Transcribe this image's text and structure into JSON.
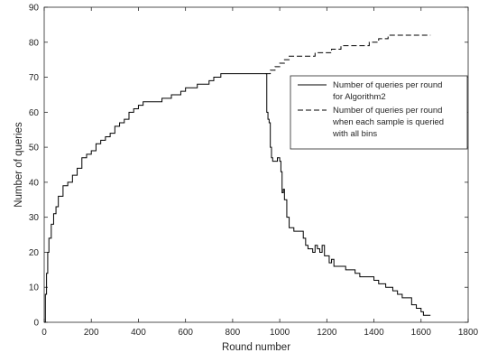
{
  "chart_data": {
    "type": "line",
    "xlabel": "Round number",
    "ylabel": "Number of queries",
    "xlim": [
      0,
      1800
    ],
    "ylim": [
      0,
      90
    ],
    "xticks": [
      0,
      200,
      400,
      600,
      800,
      1000,
      1200,
      1400,
      1600,
      1800
    ],
    "yticks": [
      0,
      10,
      20,
      30,
      40,
      50,
      60,
      70,
      80,
      90
    ],
    "grid": false,
    "legend_position": "right",
    "series": [
      {
        "name": "Number of queries per round for Algorithm2",
        "line_style": "solid",
        "color": "#000000",
        "points": [
          [
            0,
            0
          ],
          [
            5,
            8
          ],
          [
            10,
            14
          ],
          [
            15,
            20
          ],
          [
            20,
            24
          ],
          [
            30,
            28
          ],
          [
            40,
            31
          ],
          [
            50,
            33
          ],
          [
            60,
            36
          ],
          [
            80,
            39
          ],
          [
            100,
            40
          ],
          [
            120,
            42
          ],
          [
            140,
            44
          ],
          [
            160,
            47
          ],
          [
            180,
            48
          ],
          [
            200,
            49
          ],
          [
            220,
            51
          ],
          [
            240,
            52
          ],
          [
            260,
            53
          ],
          [
            280,
            54
          ],
          [
            300,
            56
          ],
          [
            320,
            57
          ],
          [
            340,
            58
          ],
          [
            360,
            60
          ],
          [
            380,
            61
          ],
          [
            400,
            62
          ],
          [
            420,
            63
          ],
          [
            460,
            63
          ],
          [
            500,
            64
          ],
          [
            540,
            65
          ],
          [
            580,
            66
          ],
          [
            600,
            67
          ],
          [
            650,
            68
          ],
          [
            700,
            69
          ],
          [
            720,
            70
          ],
          [
            750,
            71
          ],
          [
            800,
            71
          ],
          [
            850,
            71
          ],
          [
            900,
            71
          ],
          [
            940,
            71
          ],
          [
            945,
            60
          ],
          [
            950,
            58
          ],
          [
            955,
            57
          ],
          [
            960,
            50
          ],
          [
            965,
            47
          ],
          [
            970,
            46
          ],
          [
            990,
            47
          ],
          [
            1000,
            46
          ],
          [
            1005,
            43
          ],
          [
            1010,
            37
          ],
          [
            1015,
            38
          ],
          [
            1020,
            35
          ],
          [
            1030,
            30
          ],
          [
            1040,
            27
          ],
          [
            1060,
            26
          ],
          [
            1080,
            26
          ],
          [
            1100,
            24
          ],
          [
            1110,
            22
          ],
          [
            1120,
            21
          ],
          [
            1140,
            20
          ],
          [
            1150,
            22
          ],
          [
            1160,
            21
          ],
          [
            1170,
            20
          ],
          [
            1180,
            22
          ],
          [
            1190,
            19
          ],
          [
            1200,
            19
          ],
          [
            1210,
            17
          ],
          [
            1220,
            18
          ],
          [
            1230,
            16
          ],
          [
            1260,
            16
          ],
          [
            1280,
            15
          ],
          [
            1300,
            15
          ],
          [
            1320,
            14
          ],
          [
            1340,
            13
          ],
          [
            1380,
            13
          ],
          [
            1400,
            12
          ],
          [
            1420,
            11
          ],
          [
            1450,
            10
          ],
          [
            1480,
            9
          ],
          [
            1500,
            8
          ],
          [
            1520,
            7
          ],
          [
            1540,
            7
          ],
          [
            1560,
            5
          ],
          [
            1580,
            4
          ],
          [
            1600,
            3
          ],
          [
            1610,
            2
          ],
          [
            1620,
            2
          ],
          [
            1640,
            2
          ]
        ]
      },
      {
        "name": "Number of queries per round when each sample is queried with all bins",
        "line_style": "dashed",
        "color": "#000000",
        "points": [
          [
            940,
            71
          ],
          [
            960,
            72
          ],
          [
            980,
            73
          ],
          [
            1000,
            74
          ],
          [
            1020,
            75
          ],
          [
            1040,
            76
          ],
          [
            1100,
            76
          ],
          [
            1150,
            77
          ],
          [
            1200,
            77
          ],
          [
            1220,
            78
          ],
          [
            1260,
            79
          ],
          [
            1350,
            79
          ],
          [
            1380,
            80
          ],
          [
            1400,
            80
          ],
          [
            1420,
            81
          ],
          [
            1440,
            81
          ],
          [
            1460,
            82
          ],
          [
            1520,
            82
          ],
          [
            1600,
            82
          ],
          [
            1640,
            82
          ]
        ]
      }
    ],
    "legend": [
      {
        "lines": [
          "Number of queries per round",
          "for Algorithm2"
        ]
      },
      {
        "lines": [
          "Number of queries per round",
          "when each sample is queried",
          "with all bins"
        ]
      }
    ]
  }
}
